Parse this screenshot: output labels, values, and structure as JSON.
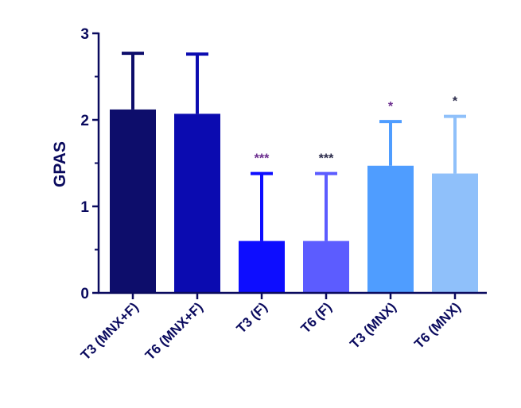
{
  "chart_data": {
    "type": "bar",
    "title": "",
    "xlabel": "",
    "ylabel": "GPAS",
    "ylim": [
      0,
      3
    ],
    "yticks": [
      "0",
      "1",
      "2",
      "3"
    ],
    "grid": false,
    "categories": [
      "T3 (MNX+F)",
      "T6 (MNX+F)",
      "T3 (F)",
      "T6 (F)",
      "T3 (MNX)",
      "T6 (MNX)"
    ],
    "values": [
      2.12,
      2.07,
      0.6,
      0.6,
      1.47,
      1.38
    ],
    "error_upper": [
      2.77,
      2.76,
      1.38,
      1.38,
      1.98,
      2.04
    ],
    "annotations": [
      "",
      "",
      "***",
      "***",
      "*",
      "*"
    ],
    "bar_colors": [
      "#0d0d6b",
      "#0b0bb0",
      "#0d0dff",
      "#5c5cff",
      "#4f9dff",
      "#8fc0fa"
    ],
    "annotation_colors": [
      "",
      "",
      "#6b2d8e",
      "#2a2a4a",
      "#6b2d8e",
      "#2a2a4a"
    ],
    "axis_color": "#0a0a5e"
  }
}
